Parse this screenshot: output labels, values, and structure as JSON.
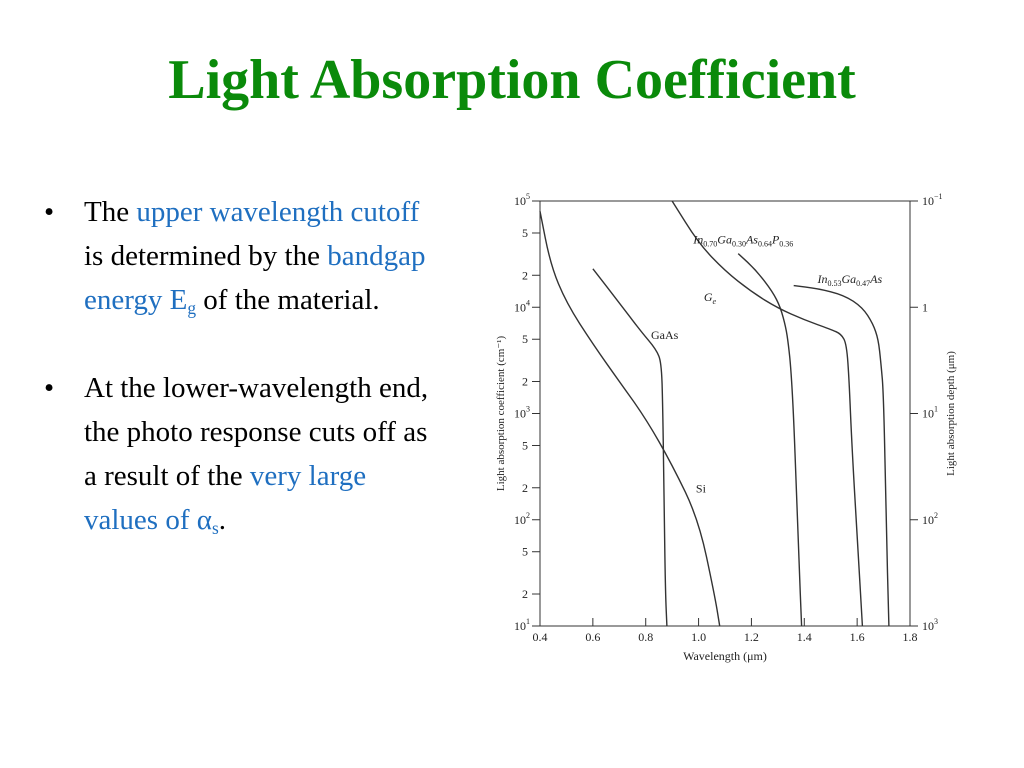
{
  "slide": {
    "title": "Light Absorption Coefficient",
    "bullets": [
      {
        "t1": "The ",
        "h1": "upper wavelength cutoff",
        "t2": " is determined by the ",
        "h2": "bandgap energy E",
        "h2_sub": "g",
        "t3": " of the material."
      },
      {
        "t1": "At the lower-wavelength end, the photo response cuts off as a result of the ",
        "h1": "very large values of α",
        "h1_sub": "s",
        "t2": "."
      }
    ]
  },
  "colors": {
    "title": "#0a8a0a",
    "highlight": "#1f6fc0",
    "text": "#000000",
    "curve": "#333333"
  },
  "chart_data": {
    "type": "line",
    "xlabel": "Wavelength (μm)",
    "ylabel": "Light absorption coefficient (cm⁻¹)",
    "ylabel_right": "Light absorption depth (μm)",
    "xlim": [
      0.4,
      1.8
    ],
    "ylim": [
      10,
      100000
    ],
    "yscale": "log",
    "x_ticks": [
      0.4,
      0.6,
      0.8,
      1.0,
      1.2,
      1.4,
      1.6,
      1.8
    ],
    "x_tick_labels": [
      "0.4",
      "0.6",
      "0.8",
      "1.0",
      "1.2",
      "1.4",
      "1.6",
      "1.8"
    ],
    "y_ticks": [
      {
        "v": 100000,
        "l": "10",
        "e": "5"
      },
      {
        "v": 50000,
        "l": "5"
      },
      {
        "v": 20000,
        "l": "2"
      },
      {
        "v": 10000,
        "l": "10",
        "e": "4"
      },
      {
        "v": 5000,
        "l": "5"
      },
      {
        "v": 2000,
        "l": "2"
      },
      {
        "v": 1000,
        "l": "10",
        "e": "3"
      },
      {
        "v": 500,
        "l": "5"
      },
      {
        "v": 200,
        "l": "2"
      },
      {
        "v": 100,
        "l": "10",
        "e": "2"
      },
      {
        "v": 50,
        "l": "5"
      },
      {
        "v": 20,
        "l": "2"
      },
      {
        "v": 10,
        "l": "10",
        "e": "1"
      }
    ],
    "y_right_ticks": [
      {
        "v": 100000,
        "l": "10",
        "e": "−1"
      },
      {
        "v": 10000,
        "l": "1"
      },
      {
        "v": 1000,
        "l": "10",
        "e": "1"
      },
      {
        "v": 100,
        "l": "10",
        "e": "2"
      },
      {
        "v": 10,
        "l": "10",
        "e": "3"
      }
    ],
    "series": [
      {
        "name": "Si",
        "label": {
          "text": "Si",
          "x": 0.99,
          "y": 180
        },
        "points": [
          [
            0.4,
            80000
          ],
          [
            0.44,
            25000
          ],
          [
            0.5,
            11000
          ],
          [
            0.6,
            4500
          ],
          [
            0.7,
            2000
          ],
          [
            0.8,
            900
          ],
          [
            0.9,
            330
          ],
          [
            1.0,
            100
          ],
          [
            1.06,
            20
          ],
          [
            1.08,
            10
          ]
        ]
      },
      {
        "name": "GaAs",
        "label": {
          "text": "GaAs",
          "x": 0.82,
          "y": 5000
        },
        "points": [
          [
            0.6,
            23000
          ],
          [
            0.7,
            11000
          ],
          [
            0.78,
            6000
          ],
          [
            0.84,
            4000
          ],
          [
            0.86,
            3000
          ],
          [
            0.865,
            1000
          ],
          [
            0.87,
            100
          ],
          [
            0.875,
            20
          ],
          [
            0.88,
            10
          ]
        ]
      },
      {
        "name": "Ge",
        "label": {
          "parts": [
            [
              "G",
              "i"
            ],
            [
              "e",
              "isub"
            ]
          ],
          "x": 1.02,
          "y": 11500
        },
        "points": [
          [
            0.9,
            100000
          ],
          [
            1.0,
            40000
          ],
          [
            1.1,
            22000
          ],
          [
            1.2,
            14000
          ],
          [
            1.3,
            9800
          ],
          [
            1.4,
            7600
          ],
          [
            1.5,
            6200
          ],
          [
            1.54,
            5600
          ],
          [
            1.56,
            4500
          ],
          [
            1.57,
            2000
          ],
          [
            1.58,
            500
          ],
          [
            1.6,
            70
          ],
          [
            1.62,
            10
          ]
        ]
      },
      {
        "name": "In0.70Ga0.30As0.64P0.36",
        "label": {
          "parts": [
            [
              "In",
              "i"
            ],
            [
              "0.70",
              "sub"
            ],
            [
              "Ga",
              "i"
            ],
            [
              "0.30",
              "sub"
            ],
            [
              "As",
              "i"
            ],
            [
              "0.64",
              "sub"
            ],
            [
              "P",
              "i"
            ],
            [
              "0.36",
              "sub"
            ]
          ],
          "x": 0.98,
          "y": 40000
        },
        "points": [
          [
            1.15,
            32000
          ],
          [
            1.22,
            22000
          ],
          [
            1.28,
            14000
          ],
          [
            1.31,
            10000
          ],
          [
            1.33,
            6500
          ],
          [
            1.34,
            4500
          ],
          [
            1.35,
            2500
          ],
          [
            1.36,
            900
          ],
          [
            1.37,
            200
          ],
          [
            1.38,
            40
          ],
          [
            1.39,
            10
          ]
        ]
      },
      {
        "name": "In0.53Ga0.47As",
        "label": {
          "parts": [
            [
              "In",
              "i"
            ],
            [
              "0.53",
              "sub"
            ],
            [
              "Ga",
              "i"
            ],
            [
              "0.47",
              "sub"
            ],
            [
              "As",
              "i"
            ]
          ],
          "x": 1.45,
          "y": 17000
        },
        "points": [
          [
            1.36,
            16000
          ],
          [
            1.45,
            15000
          ],
          [
            1.55,
            13000
          ],
          [
            1.62,
            10000
          ],
          [
            1.66,
            7000
          ],
          [
            1.68,
            5000
          ],
          [
            1.69,
            3000
          ],
          [
            1.7,
            1500
          ],
          [
            1.71,
            100
          ],
          [
            1.72,
            10
          ]
        ]
      }
    ]
  }
}
